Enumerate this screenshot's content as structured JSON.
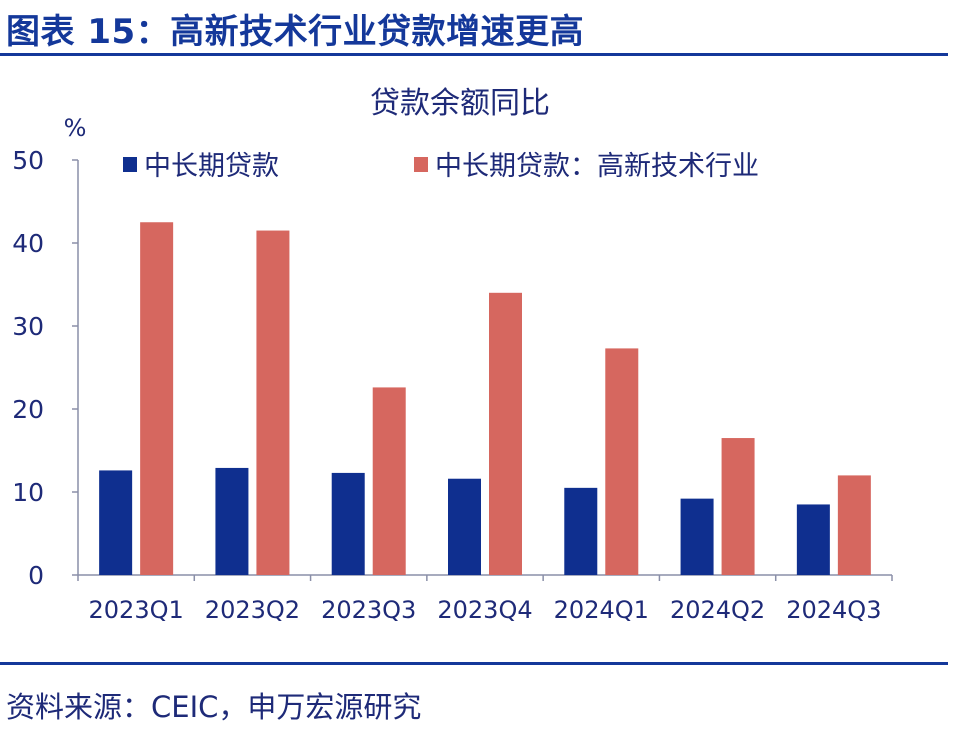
{
  "figure": {
    "title": "图表 15：高新技术行业贷款增速更高",
    "source": "资料来源：CEIC，申万宏源研究"
  },
  "colors": {
    "accent": "#14389a",
    "text": "#1e2a78",
    "series_1": "#0f2f8f",
    "series_2": "#d6675f"
  },
  "chart_data": {
    "type": "bar",
    "title": "贷款余额同比",
    "ylabel": "%",
    "xlabel": "",
    "ylim": [
      0,
      50
    ],
    "yticks": [
      "0",
      "10",
      "20",
      "30",
      "40",
      "50"
    ],
    "categories": [
      "2023Q1",
      "2023Q2",
      "2023Q3",
      "2023Q4",
      "2024Q1",
      "2024Q2",
      "2024Q3"
    ],
    "series": [
      {
        "name": "中长期贷款",
        "values": [
          12.6,
          12.9,
          12.3,
          11.6,
          10.5,
          9.2,
          8.5
        ]
      },
      {
        "name": "中长期贷款：高新技术行业",
        "values": [
          42.5,
          41.5,
          22.6,
          34.0,
          27.3,
          16.5,
          12.0
        ]
      }
    ],
    "grid": false,
    "legend_position": "top"
  }
}
